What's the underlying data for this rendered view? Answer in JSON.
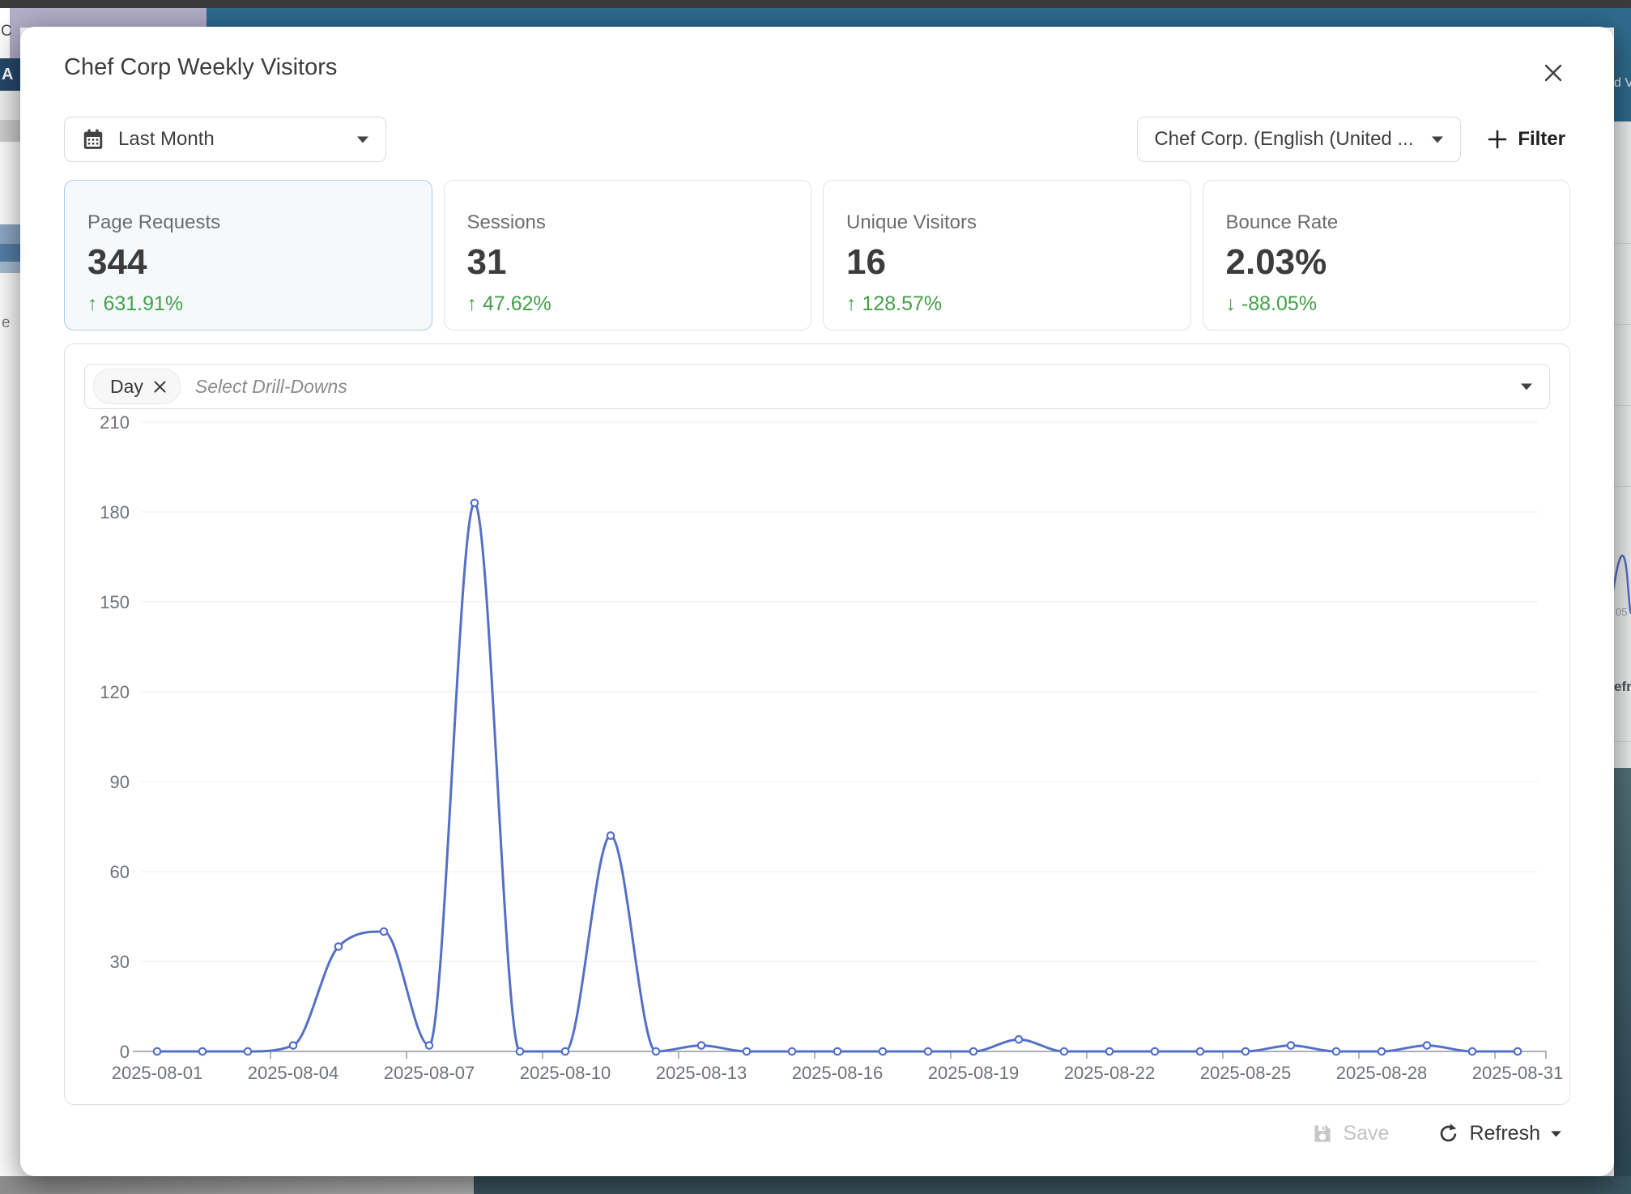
{
  "modal": {
    "title": "Chef Corp Weekly Visitors",
    "date_range": {
      "label": "Last Month"
    },
    "scope_select": {
      "value": "Chef Corp. (English (United ..."
    },
    "filter_button": {
      "label": "Filter"
    },
    "metrics": [
      {
        "label": "Page Requests",
        "value": "344",
        "arrow": "↑",
        "delta": "631.91%"
      },
      {
        "label": "Sessions",
        "value": "31",
        "arrow": "↑",
        "delta": "47.62%"
      },
      {
        "label": "Unique Visitors",
        "value": "16",
        "arrow": "↑",
        "delta": "128.57%"
      },
      {
        "label": "Bounce Rate",
        "value": "2.03%",
        "arrow": "↓",
        "delta": "-88.05%"
      }
    ],
    "drilldown": {
      "chip": "Day",
      "placeholder": "Select Drill-Downs"
    },
    "footer": {
      "save_label": "Save",
      "refresh_label": "Refresh"
    }
  },
  "colors": {
    "positive_green": "#43a047",
    "selected_card_border": "#a9cbe9",
    "line_blue": "#5470c6"
  },
  "backdrop_fragments": {
    "left_top_char": "C",
    "left_navy_char": "A",
    "left_bottom_char": "e",
    "right_top_text": "d V",
    "right_axis_text": "05",
    "right_mid_text": "efr"
  },
  "chart_data": {
    "type": "line",
    "title": "",
    "x": [
      "2025-08-01",
      "2025-08-02",
      "2025-08-03",
      "2025-08-04",
      "2025-08-05",
      "2025-08-06",
      "2025-08-07",
      "2025-08-08",
      "2025-08-09",
      "2025-08-10",
      "2025-08-11",
      "2025-08-12",
      "2025-08-13",
      "2025-08-14",
      "2025-08-15",
      "2025-08-16",
      "2025-08-17",
      "2025-08-18",
      "2025-08-19",
      "2025-08-20",
      "2025-08-21",
      "2025-08-22",
      "2025-08-23",
      "2025-08-24",
      "2025-08-25",
      "2025-08-26",
      "2025-08-27",
      "2025-08-28",
      "2025-08-29",
      "2025-08-30",
      "2025-08-31"
    ],
    "values": [
      0,
      0,
      0,
      2,
      35,
      40,
      2,
      183,
      0,
      0,
      72,
      0,
      2,
      0,
      0,
      0,
      0,
      0,
      0,
      4,
      0,
      0,
      0,
      0,
      0,
      2,
      0,
      0,
      2,
      0,
      0
    ],
    "xlabel": "",
    "ylabel": "",
    "ylim": [
      0,
      210
    ],
    "ytick_step": 30,
    "x_label_every": 3,
    "grid": true,
    "legend_position": "none",
    "smooth": true,
    "line_color": "#5470c6",
    "marker_fill": "#ffffff",
    "grid_color": "#e8ecf3",
    "axis_color": "#8f959e",
    "label_color": "#6e7379"
  }
}
